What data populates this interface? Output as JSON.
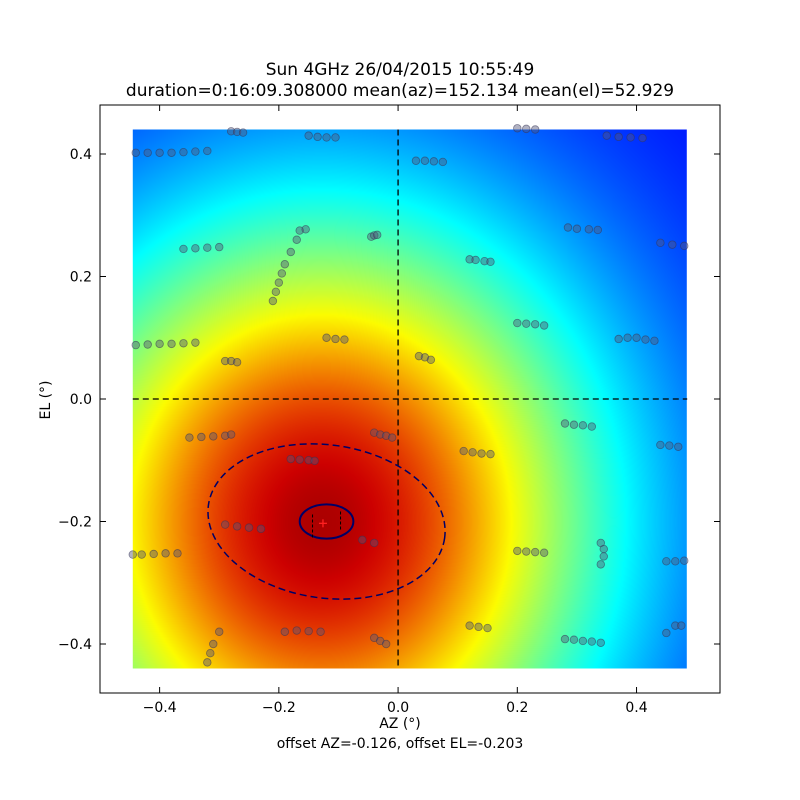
{
  "chart_data": {
    "type": "heatmap",
    "title_line1": "Sun 4GHz 26/04/2015 10:55:49",
    "title_line2": "duration=0:16:09.308000 mean(az)=152.134 mean(el)=52.929",
    "xlabel": "AZ (°)",
    "ylabel": "EL (°)",
    "footer": "offset AZ=-0.126, offset EL=-0.203",
    "xlim": [
      -0.5,
      0.54
    ],
    "ylim": [
      -0.48,
      0.48
    ],
    "heatmap_extent": {
      "x": [
        -0.445,
        0.485
      ],
      "y": [
        -0.44,
        0.44
      ]
    },
    "xticks": [
      -0.4,
      -0.2,
      0.0,
      0.2,
      0.4
    ],
    "xtick_labels": [
      "−0.4",
      "−0.2",
      "0.0",
      "0.2",
      "0.4"
    ],
    "yticks": [
      -0.4,
      -0.2,
      0.0,
      0.2,
      0.4
    ],
    "ytick_labels": [
      "−0.4",
      "−0.2",
      "0.0",
      "0.2",
      "0.4"
    ],
    "colormap": "jet",
    "peak": {
      "az": -0.13,
      "el": -0.2
    },
    "offset_marker": {
      "az": -0.126,
      "el": -0.203,
      "color": "#ff2020"
    },
    "crosshair": {
      "az": 0.0,
      "el": 0.0
    },
    "inner_ellipse": {
      "cx": -0.12,
      "cy": -0.2,
      "rx": 0.045,
      "ry": 0.028,
      "color": "#000066"
    },
    "outer_ellipse": {
      "cx": -0.12,
      "cy": -0.2,
      "rx": 0.2,
      "ry": 0.125,
      "color": "#000066"
    },
    "sample_tracks": [
      [
        [
          -0.44,
          0.402
        ],
        [
          -0.42,
          0.402
        ],
        [
          -0.4,
          0.402
        ],
        [
          -0.38,
          0.402
        ],
        [
          -0.36,
          0.403
        ],
        [
          -0.34,
          0.404
        ],
        [
          -0.32,
          0.405
        ]
      ],
      [
        [
          -0.28,
          0.437
        ],
        [
          -0.27,
          0.436
        ],
        [
          -0.26,
          0.435
        ]
      ],
      [
        [
          -0.15,
          0.43
        ],
        [
          -0.135,
          0.428
        ],
        [
          -0.12,
          0.427
        ],
        [
          -0.105,
          0.427
        ]
      ],
      [
        [
          0.03,
          0.389
        ],
        [
          0.045,
          0.389
        ],
        [
          0.06,
          0.388
        ],
        [
          0.075,
          0.387
        ]
      ],
      [
        [
          0.2,
          0.442
        ],
        [
          0.215,
          0.441
        ],
        [
          0.23,
          0.44
        ]
      ],
      [
        [
          0.35,
          0.43
        ],
        [
          0.37,
          0.428
        ],
        [
          0.39,
          0.427
        ],
        [
          0.41,
          0.426
        ]
      ],
      [
        [
          -0.36,
          0.245
        ],
        [
          -0.34,
          0.246
        ],
        [
          -0.32,
          0.247
        ],
        [
          -0.3,
          0.248
        ]
      ],
      [
        [
          -0.21,
          0.16
        ],
        [
          -0.205,
          0.175
        ],
        [
          -0.2,
          0.19
        ],
        [
          -0.195,
          0.205
        ],
        [
          -0.19,
          0.22
        ],
        [
          -0.18,
          0.24
        ],
        [
          -0.17,
          0.26
        ],
        [
          -0.165,
          0.275
        ],
        [
          -0.155,
          0.277
        ]
      ],
      [
        [
          -0.045,
          0.265
        ],
        [
          -0.04,
          0.267
        ],
        [
          -0.035,
          0.268
        ]
      ],
      [
        [
          0.12,
          0.228
        ],
        [
          0.13,
          0.227
        ],
        [
          0.145,
          0.225
        ],
        [
          0.155,
          0.224
        ]
      ],
      [
        [
          0.285,
          0.28
        ],
        [
          0.3,
          0.278
        ],
        [
          0.32,
          0.277
        ],
        [
          0.335,
          0.276
        ]
      ],
      [
        [
          0.44,
          0.255
        ],
        [
          0.46,
          0.252
        ],
        [
          0.48,
          0.25
        ]
      ],
      [
        [
          -0.44,
          0.088
        ],
        [
          -0.42,
          0.089
        ],
        [
          -0.4,
          0.09
        ],
        [
          -0.38,
          0.09
        ],
        [
          -0.36,
          0.091
        ],
        [
          -0.34,
          0.092
        ]
      ],
      [
        [
          -0.29,
          0.062
        ],
        [
          -0.28,
          0.062
        ],
        [
          -0.27,
          0.06
        ]
      ],
      [
        [
          -0.12,
          0.1
        ],
        [
          -0.105,
          0.098
        ],
        [
          -0.09,
          0.097
        ]
      ],
      [
        [
          0.035,
          0.07
        ],
        [
          0.045,
          0.068
        ],
        [
          0.055,
          0.064
        ]
      ],
      [
        [
          0.2,
          0.124
        ],
        [
          0.215,
          0.123
        ],
        [
          0.23,
          0.122
        ],
        [
          0.245,
          0.12
        ]
      ],
      [
        [
          0.37,
          0.098
        ],
        [
          0.385,
          0.1
        ],
        [
          0.4,
          0.1
        ],
        [
          0.415,
          0.097
        ],
        [
          0.43,
          0.095
        ]
      ],
      [
        [
          -0.35,
          -0.063
        ],
        [
          -0.33,
          -0.062
        ],
        [
          -0.31,
          -0.061
        ],
        [
          -0.29,
          -0.06
        ],
        [
          -0.28,
          -0.058
        ]
      ],
      [
        [
          -0.04,
          -0.055
        ],
        [
          -0.03,
          -0.058
        ],
        [
          -0.02,
          -0.06
        ],
        [
          -0.01,
          -0.063
        ]
      ],
      [
        [
          0.11,
          -0.085
        ],
        [
          0.125,
          -0.087
        ],
        [
          0.14,
          -0.089
        ],
        [
          0.155,
          -0.09
        ]
      ],
      [
        [
          0.28,
          -0.04
        ],
        [
          0.295,
          -0.042
        ],
        [
          0.31,
          -0.043
        ],
        [
          0.325,
          -0.045
        ]
      ],
      [
        [
          0.44,
          -0.075
        ],
        [
          0.455,
          -0.076
        ],
        [
          0.47,
          -0.078
        ]
      ],
      [
        [
          -0.18,
          -0.098
        ],
        [
          -0.165,
          -0.099
        ],
        [
          -0.15,
          -0.1
        ],
        [
          -0.14,
          -0.101
        ]
      ],
      [
        [
          -0.29,
          -0.205
        ],
        [
          -0.27,
          -0.208
        ],
        [
          -0.25,
          -0.21
        ],
        [
          -0.23,
          -0.212
        ]
      ],
      [
        [
          -0.06,
          -0.23
        ],
        [
          -0.04,
          -0.235
        ]
      ],
      [
        [
          -0.445,
          -0.254
        ],
        [
          -0.43,
          -0.254
        ],
        [
          -0.41,
          -0.253
        ],
        [
          -0.39,
          -0.252
        ],
        [
          -0.37,
          -0.252
        ]
      ],
      [
        [
          0.2,
          -0.248
        ],
        [
          0.215,
          -0.249
        ],
        [
          0.23,
          -0.25
        ],
        [
          0.245,
          -0.251
        ]
      ],
      [
        [
          0.34,
          -0.235
        ],
        [
          0.345,
          -0.245
        ],
        [
          0.345,
          -0.257
        ],
        [
          0.34,
          -0.27
        ]
      ],
      [
        [
          0.45,
          -0.265
        ],
        [
          0.465,
          -0.265
        ],
        [
          0.48,
          -0.264
        ]
      ],
      [
        [
          -0.32,
          -0.43
        ],
        [
          -0.315,
          -0.415
        ],
        [
          -0.31,
          -0.4
        ],
        [
          -0.3,
          -0.38
        ]
      ],
      [
        [
          -0.19,
          -0.38
        ],
        [
          -0.17,
          -0.378
        ],
        [
          -0.15,
          -0.379
        ],
        [
          -0.13,
          -0.38
        ]
      ],
      [
        [
          -0.04,
          -0.39
        ],
        [
          -0.03,
          -0.395
        ],
        [
          -0.02,
          -0.4
        ]
      ],
      [
        [
          0.12,
          -0.37
        ],
        [
          0.135,
          -0.372
        ],
        [
          0.15,
          -0.374
        ]
      ],
      [
        [
          0.28,
          -0.392
        ],
        [
          0.295,
          -0.393
        ],
        [
          0.31,
          -0.395
        ],
        [
          0.325,
          -0.396
        ],
        [
          0.34,
          -0.398
        ]
      ],
      [
        [
          0.45,
          -0.382
        ],
        [
          0.465,
          -0.37
        ],
        [
          0.475,
          -0.37
        ]
      ]
    ],
    "sample_color": "#555577"
  }
}
